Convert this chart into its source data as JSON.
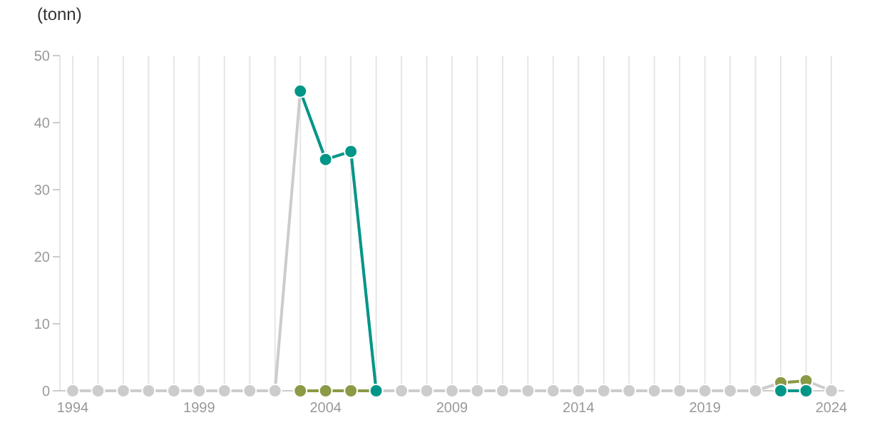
{
  "chart_data": {
    "type": "line",
    "ylabel": "(tonn)",
    "x": [
      1994,
      1995,
      1996,
      1997,
      1998,
      1999,
      2000,
      2001,
      2002,
      2003,
      2004,
      2005,
      2006,
      2007,
      2008,
      2009,
      2010,
      2011,
      2012,
      2013,
      2014,
      2015,
      2016,
      2017,
      2018,
      2019,
      2020,
      2021,
      2022,
      2023,
      2024
    ],
    "series": [
      {
        "color": "#cccccc",
        "values": [
          0,
          0,
          0,
          0,
          0,
          0,
          0,
          0,
          0,
          44.7,
          34.5,
          35.7,
          0,
          0,
          0,
          0,
          0,
          0,
          0,
          0,
          0,
          0,
          0,
          0,
          0,
          0,
          0,
          0,
          1.2,
          1.5,
          0
        ]
      },
      {
        "color": "#8a9a45",
        "values": [
          null,
          null,
          null,
          null,
          null,
          null,
          null,
          null,
          null,
          0,
          0,
          0,
          0,
          null,
          null,
          null,
          null,
          null,
          null,
          null,
          null,
          null,
          null,
          null,
          null,
          null,
          null,
          null,
          1.2,
          1.5,
          null
        ]
      },
      {
        "color": "#009688",
        "values": [
          null,
          null,
          null,
          null,
          null,
          null,
          null,
          null,
          null,
          44.7,
          34.5,
          35.7,
          0,
          null,
          null,
          null,
          null,
          null,
          null,
          null,
          null,
          null,
          null,
          null,
          null,
          null,
          null,
          null,
          0,
          0,
          null
        ]
      }
    ],
    "xlim": [
      1994,
      2024
    ],
    "xticks": [
      1994,
      {
        "value": 1995,
        "label": null
      },
      {
        "value": 1996,
        "label": null
      },
      {
        "value": 1997,
        "label": null
      },
      {
        "value": 1998,
        "label": null
      },
      1999,
      {
        "value": 2000,
        "label": null
      },
      {
        "value": 2001,
        "label": null
      },
      {
        "value": 2002,
        "label": null
      },
      {
        "value": 2003,
        "label": null
      },
      2004,
      {
        "value": 2005,
        "label": null
      },
      {
        "value": 2006,
        "label": null
      },
      {
        "value": 2007,
        "label": null
      },
      {
        "value": 2008,
        "label": null
      },
      2009,
      {
        "value": 2010,
        "label": null
      },
      {
        "value": 2011,
        "label": null
      },
      {
        "value": 2012,
        "label": null
      },
      {
        "value": 2013,
        "label": null
      },
      2014,
      {
        "value": 2015,
        "label": null
      },
      {
        "value": 2016,
        "label": null
      },
      {
        "value": 2017,
        "label": null
      },
      {
        "value": 2018,
        "label": null
      },
      2019,
      {
        "value": 2020,
        "label": null
      },
      {
        "value": 2021,
        "label": null
      },
      {
        "value": 2022,
        "label": null
      },
      {
        "value": 2023,
        "label": null
      },
      2024
    ],
    "ylim": [
      0,
      50
    ],
    "yticks": [
      0,
      10,
      20,
      30,
      40,
      50
    ],
    "grid": "x",
    "marker": "circle",
    "line_style": "solid"
  }
}
